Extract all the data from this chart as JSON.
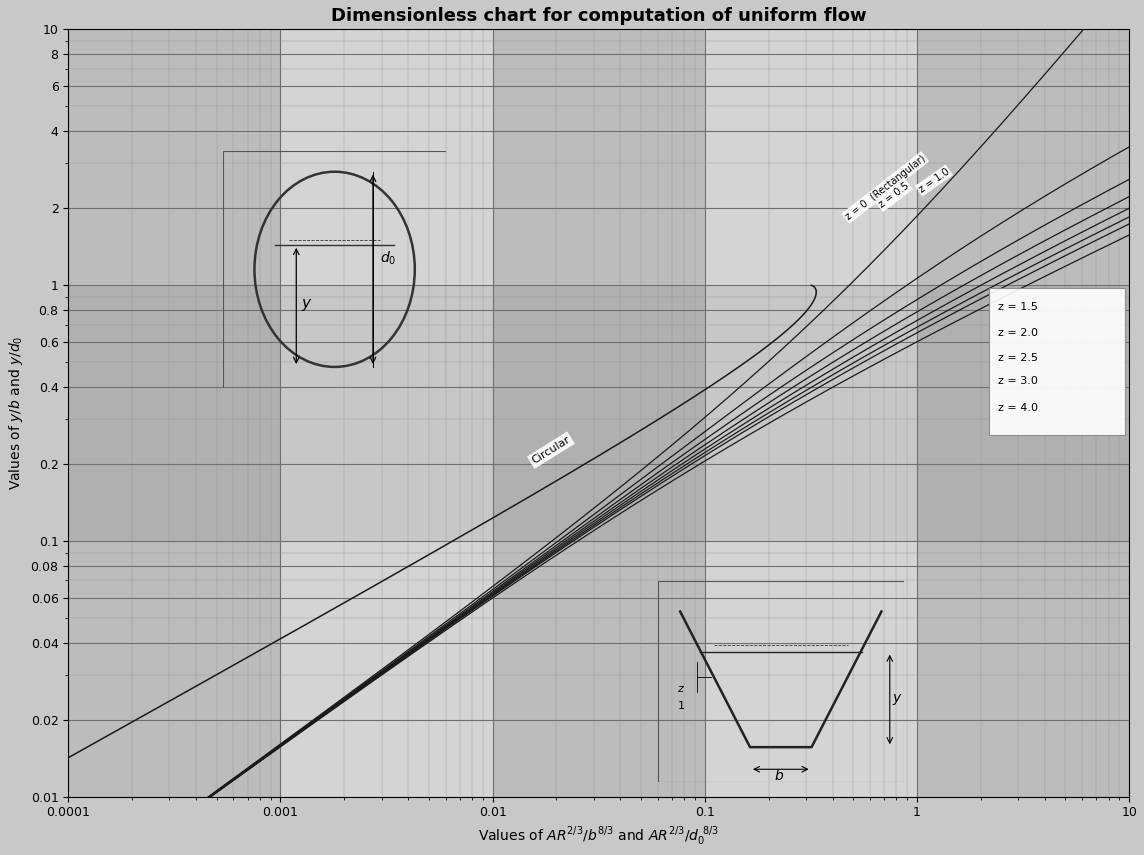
{
  "title": "Dimensionless chart for computation of uniform flow",
  "xlabel": "Values of AR²⁄³/b⁸⁄³ and AR²⁄³/d₀⁸⁄³",
  "ylabel": "Values of y/b and y/d₀",
  "xlim": [
    0.0001,
    10
  ],
  "ylim": [
    0.01,
    10
  ],
  "bg_color": "#c8c8c8",
  "grid_major_color": "#888888",
  "grid_minor_color": "#aaaaaa",
  "line_color": "#1a1a1a",
  "z_values": [
    0,
    0.5,
    1.0,
    1.5,
    2.0,
    2.5,
    3.0,
    4.0
  ],
  "band_light": "#d4d4d4",
  "band_dark": "#b0b0b0"
}
